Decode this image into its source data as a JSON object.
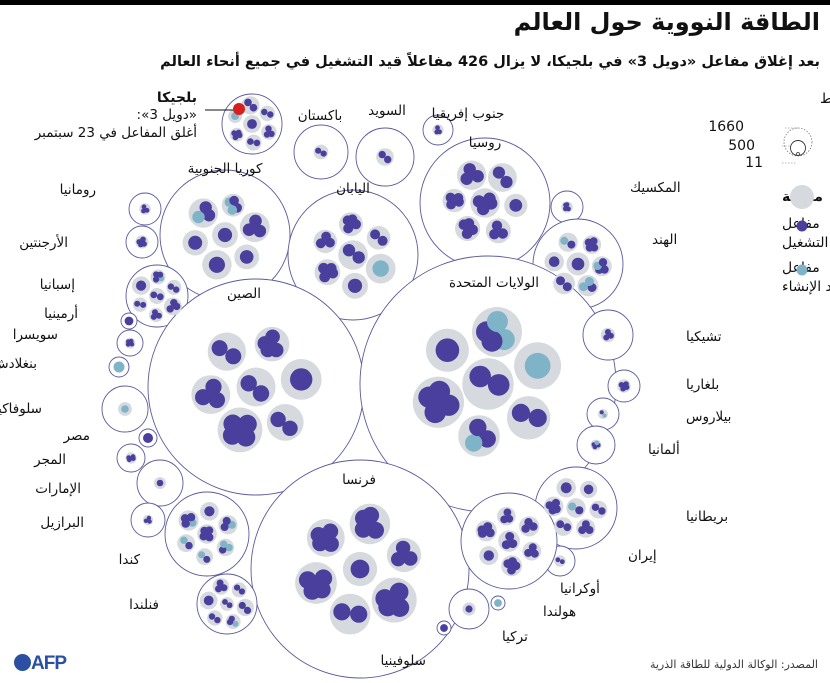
{
  "header": {
    "title": "الطاقة النووية حول العالم",
    "subtitle": "بعد إغلاق مفاعل «دويل 3» في بلجيكا، لا يزال 426 مفاعلاً قيد التشغيل في جميع أنحاء العالم"
  },
  "annotation": {
    "country": "بلجيكا",
    "line1": "«دويل 3»:",
    "line2": "أغلق المفاعل في 23 سبتمبر"
  },
  "legend": {
    "size_title": "قدرة التوليد بالميغاواط",
    "size_values": [
      "1660",
      "500",
      "11"
    ],
    "station_label": "محطة",
    "operating_label_1": "مفاعل",
    "operating_label_2": "قيد التشغيل",
    "construction_label_1": "مفاعل",
    "construction_label_2": "قيد الإنشاء"
  },
  "footer": {
    "source": "المصدر: الوكالة الدولية للطاقة الذرية",
    "logo": "AFP"
  },
  "colors": {
    "operating": "#4a3f9c",
    "construction": "#7fb3c8",
    "station": "#d6d9dd",
    "closed": "#d62020",
    "outline": "#5a5a9c"
  },
  "chart_data": {
    "type": "packed-bubble",
    "countries": [
      {
        "name": "بلجيكا"
      },
      {
        "name": "باكستان"
      },
      {
        "name": "السويد"
      },
      {
        "name": "جنوب إفريقيا"
      },
      {
        "name": "روسيا"
      },
      {
        "name": "كوريا الجنوبية"
      },
      {
        "name": "اليابان"
      },
      {
        "name": "رومانيا"
      },
      {
        "name": "الأرجنتين"
      },
      {
        "name": "المكسيك"
      },
      {
        "name": "الهند"
      },
      {
        "name": "إسبانيا"
      },
      {
        "name": "أرمينيا"
      },
      {
        "name": "سويسرا"
      },
      {
        "name": "بنغلادش"
      },
      {
        "name": "الصين"
      },
      {
        "name": "الولايات المتحدة"
      },
      {
        "name": "تشيكيا"
      },
      {
        "name": "بلغاريا"
      },
      {
        "name": "سلوفاكيا"
      },
      {
        "name": "بيلاروس"
      },
      {
        "name": "مصر"
      },
      {
        "name": "ألمانيا"
      },
      {
        "name": "المجر"
      },
      {
        "name": "الإمارات"
      },
      {
        "name": "بريطانيا"
      },
      {
        "name": "البرازيل"
      },
      {
        "name": "كندا"
      },
      {
        "name": "فرنسا"
      },
      {
        "name": "إيران"
      },
      {
        "name": "فنلندا"
      },
      {
        "name": "أوكرانيا"
      },
      {
        "name": "هولندا"
      },
      {
        "name": "تركيا"
      },
      {
        "name": "سلوفينيا"
      }
    ]
  }
}
